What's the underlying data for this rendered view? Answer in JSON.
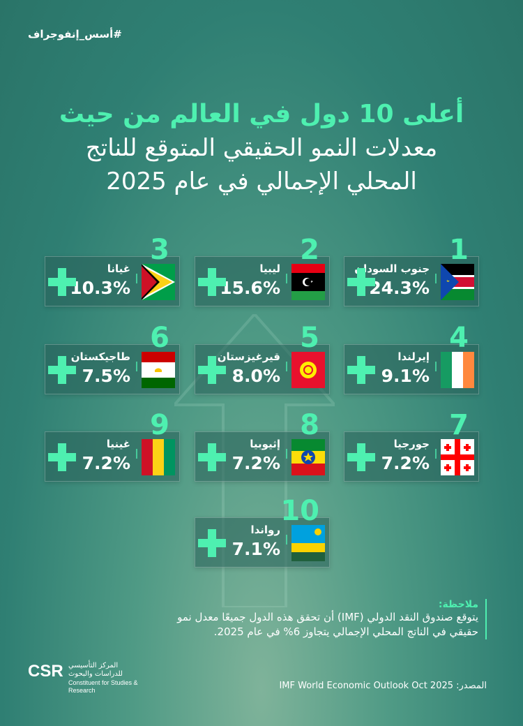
{
  "hashtag": "#أسس_إنفوجراف",
  "title": {
    "line1": "أعلى 10 دول في العالم من حيث",
    "line2": "معدلات النمو الحقيقي المتوقع للناتج",
    "line3": "المحلي الإجمالي في عام 2025"
  },
  "countries": [
    {
      "rank": "1",
      "name": "جنوب السودان",
      "value": "24.3%",
      "flag": "south-sudan-flag"
    },
    {
      "rank": "2",
      "name": "ليبيا",
      "value": "15.6%",
      "flag": "libya-flag"
    },
    {
      "rank": "3",
      "name": "غيانا",
      "value": "10.3%",
      "flag": "guyana-flag"
    },
    {
      "rank": "4",
      "name": "إيرلندا",
      "value": "9.1%",
      "flag": "ireland-flag"
    },
    {
      "rank": "5",
      "name": "قيرغيزستان",
      "value": "8.0%",
      "flag": "kyrgyzstan-flag"
    },
    {
      "rank": "6",
      "name": "طاجيكستان",
      "value": "7.5%",
      "flag": "tajikistan-flag"
    },
    {
      "rank": "7",
      "name": "جورجيا",
      "value": "7.2%",
      "flag": "georgia-flag"
    },
    {
      "rank": "8",
      "name": "إثيوبيا",
      "value": "7.2%",
      "flag": "ethiopia-flag"
    },
    {
      "rank": "9",
      "name": "غينيا",
      "value": "7.2%",
      "flag": "guinea-flag"
    },
    {
      "rank": "10",
      "name": "رواندا",
      "value": "7.1%",
      "flag": "rwanda-flag"
    }
  ],
  "note": {
    "title": "ملاحظة:",
    "body": "يتوقع صندوق النقد الدولي (IMF) أن تحقق هذه الدول جميعًا معدل نمو حقيقي في الناتج المحلي الإجمالي يتجاوز 6% في عام 2025."
  },
  "source": "المصدر: IMF World Economic Outlook Oct 2025",
  "logo": {
    "mark": "CSR",
    "arabic": "المركز التأسيسي للدراسات والبحوث",
    "english": "Constituent for Studies & Research"
  },
  "colors": {
    "accent": "#4ef0b0",
    "card": "#2f6e66"
  }
}
